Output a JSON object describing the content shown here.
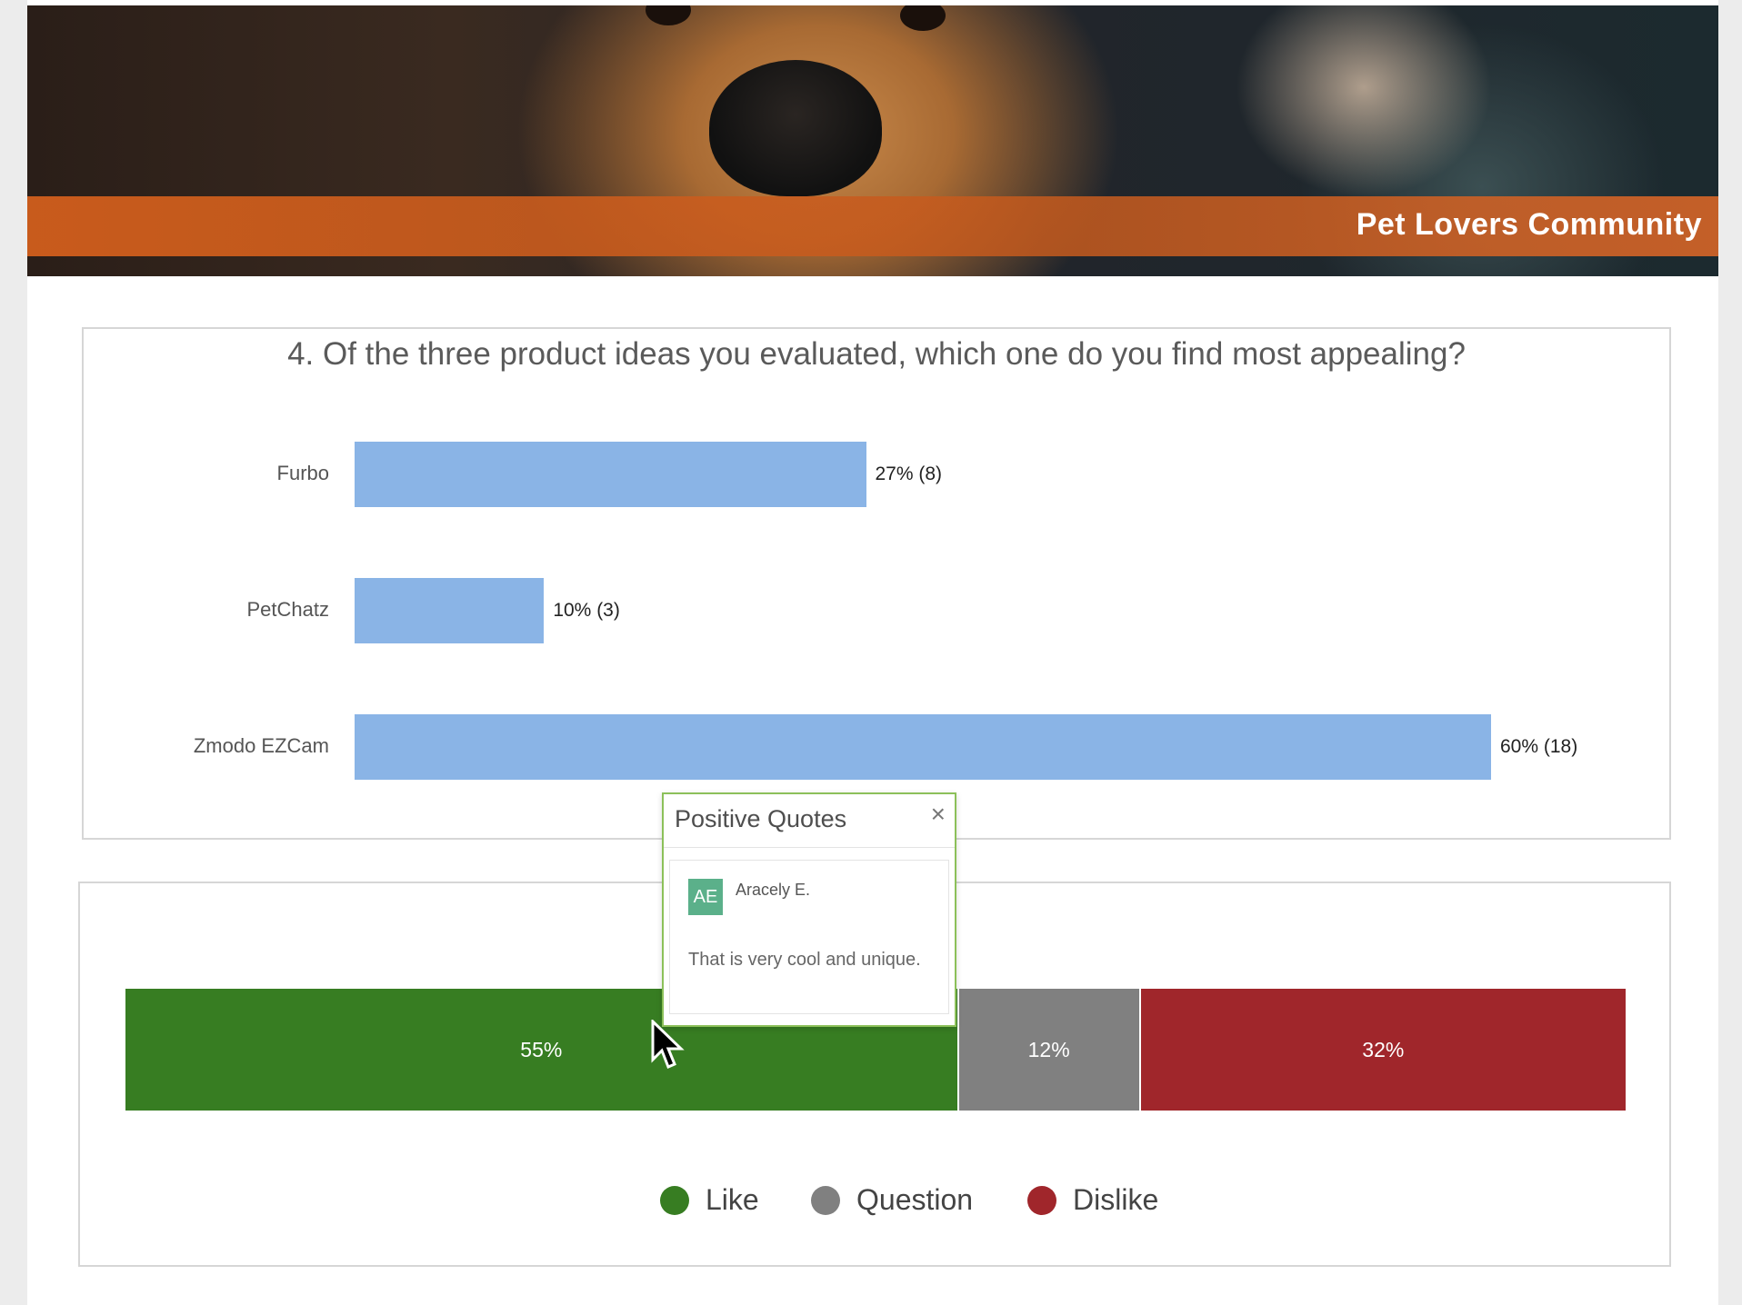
{
  "header": {
    "brand_title": "Pet Lovers Community"
  },
  "question": {
    "title": "4. Of the three product ideas you evaluated, which one do you find most appealing?"
  },
  "chart_data": [
    {
      "type": "bar",
      "orientation": "horizontal",
      "title": "4. Of the three product ideas you evaluated, which one do you find most appealing?",
      "categories": [
        "Furbo",
        "PetChatz",
        "Zmodo EZCam"
      ],
      "values": [
        27,
        10,
        60
      ],
      "counts": [
        8,
        3,
        18
      ],
      "labels": [
        "27% (8)",
        "10% (3)",
        "60% (18)"
      ],
      "xlim": [
        0,
        60
      ],
      "color": "#8ab4e6",
      "grid": false
    },
    {
      "type": "bar",
      "orientation": "horizontal",
      "stacked": true,
      "series": [
        {
          "name": "Like",
          "value": 55,
          "label": "55%",
          "color": "#377d22"
        },
        {
          "name": "Question",
          "value": 12,
          "label": "12%",
          "color": "#808080"
        },
        {
          "name": "Dislike",
          "value": 32,
          "label": "32%",
          "color": "#a0262b"
        }
      ],
      "legend_position": "bottom-center"
    }
  ],
  "popup": {
    "title": "Positive Quotes",
    "close_icon": "close-icon",
    "avatar_initials": "AE",
    "author": "Aracely E.",
    "quote": "That is very cool and unique.",
    "accent": "#8cc05a"
  },
  "legend": [
    {
      "label": "Like",
      "color": "#377d22"
    },
    {
      "label": "Question",
      "color": "#808080"
    },
    {
      "label": "Dislike",
      "color": "#a0262b"
    }
  ]
}
